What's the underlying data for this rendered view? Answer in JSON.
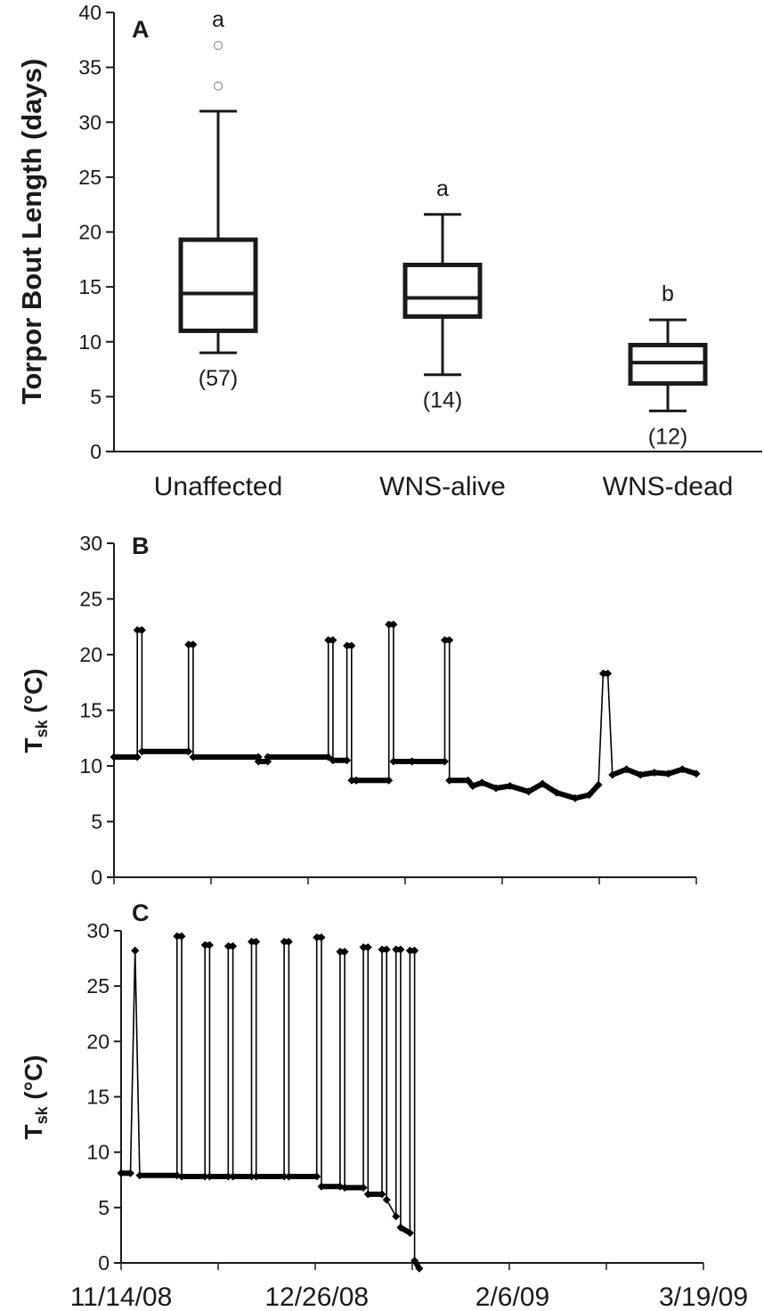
{
  "chart_data": [
    {
      "panel": "A",
      "type": "box",
      "ylabel": "Torpor Bout Length (days)",
      "ylim": [
        0,
        40
      ],
      "yticks": [
        0,
        5,
        10,
        15,
        20,
        25,
        30,
        35,
        40
      ],
      "categories": [
        "Unaffected",
        "WNS-alive",
        "WNS-dead"
      ],
      "boxes": [
        {
          "category": "Unaffected",
          "whisker_low": 9,
          "q1": 11,
          "median": 14.4,
          "q3": 19.3,
          "whisker_high": 31,
          "outliers": [
            33.3,
            37
          ],
          "sig_letter": "a",
          "n_label": "(57)"
        },
        {
          "category": "WNS-alive",
          "whisker_low": 7,
          "q1": 12.3,
          "median": 14,
          "q3": 17,
          "whisker_high": 21.6,
          "outliers": [],
          "sig_letter": "a",
          "n_label": "(14)"
        },
        {
          "category": "WNS-dead",
          "whisker_low": 3.7,
          "q1": 6.2,
          "median": 8.1,
          "q3": 9.7,
          "whisker_high": 12,
          "outliers": [],
          "sig_letter": "b",
          "n_label": "(12)"
        }
      ]
    },
    {
      "panel": "B",
      "type": "line",
      "ylabel": "T",
      "ylabel_sub": "sk",
      "ylabel_unit": " (°C)",
      "ylim": [
        0,
        30
      ],
      "yticks": [
        0,
        5,
        10,
        15,
        20,
        25,
        30
      ],
      "xlim": [
        "11/14/08",
        "3/19/09"
      ],
      "x": [
        "11/14/08",
        "11/19/08",
        "11/19/08",
        "11/20/08",
        "11/20/08",
        "11/30/08",
        "11/30/08",
        "12/1/08",
        "12/1/08",
        "12/15/08",
        "12/15/08",
        "12/17/08",
        "12/17/08",
        "12/30/08",
        "12/30/08",
        "12/31/08",
        "12/31/08",
        "1/3/09",
        "1/3/09",
        "1/4/09",
        "1/4/09",
        "1/5/09",
        "1/5/09",
        "1/12/09",
        "1/12/09",
        "1/13/09",
        "1/13/09",
        "1/17/09",
        "1/17/09",
        "1/24/09",
        "1/24/09",
        "1/25/09",
        "1/25/09",
        "1/29/09",
        "1/30/09",
        "2/1/09",
        "2/4/09",
        "2/7/09",
        "2/11/09",
        "2/14/09",
        "2/17/09",
        "2/21/09",
        "2/24/09",
        "2/26/09",
        "2/27/09",
        "2/28/09",
        "3/1/09",
        "3/4/09",
        "3/7/09",
        "3/10/09",
        "3/13/09",
        "3/16/09",
        "3/19/09"
      ],
      "y": [
        10.8,
        10.8,
        22.2,
        22.2,
        11.3,
        11.3,
        20.9,
        20.9,
        10.8,
        10.8,
        10.4,
        10.4,
        10.8,
        10.8,
        21.3,
        21.3,
        10.5,
        10.5,
        20.8,
        20.8,
        8.7,
        8.7,
        8.7,
        8.7,
        22.7,
        22.7,
        10.4,
        10.4,
        10.4,
        10.4,
        21.3,
        21.3,
        8.7,
        8.7,
        8.2,
        8.5,
        8.0,
        8.2,
        7.7,
        8.4,
        7.6,
        7.1,
        7.4,
        8.3,
        18.3,
        18.3,
        9.2,
        9.7,
        9.2,
        9.4,
        9.3,
        9.7,
        9.3
      ]
    },
    {
      "panel": "C",
      "type": "line",
      "ylabel": "T",
      "ylabel_sub": "sk",
      "ylabel_unit": " (°C)",
      "ylim": [
        0,
        30
      ],
      "yticks": [
        0,
        5,
        10,
        15,
        20,
        25,
        30
      ],
      "xlim": [
        "11/14/08",
        "3/19/09"
      ],
      "xticks": [
        "11/14/08",
        "12/26/08",
        "2/6/09",
        "3/19/09"
      ],
      "x": [
        "11/14/08",
        "11/16/08",
        "11/17/08",
        "11/17/08",
        "11/18/08",
        "11/26/08",
        "11/26/08",
        "11/27/08",
        "11/27/08",
        "12/2/08",
        "12/2/08",
        "12/3/08",
        "12/3/08",
        "12/7/08",
        "12/7/08",
        "12/8/08",
        "12/8/08",
        "12/12/08",
        "12/12/08",
        "12/13/08",
        "12/13/08",
        "12/19/08",
        "12/19/08",
        "12/20/08",
        "12/20/08",
        "12/26/08",
        "12/26/08",
        "12/27/08",
        "12/27/08",
        "12/31/08",
        "12/31/08",
        "1/1/09",
        "1/1/09",
        "1/5/09",
        "1/5/09",
        "1/6/09",
        "1/6/09",
        "1/9/09",
        "1/9/09",
        "1/10/09",
        "1/10/09",
        "1/12/09",
        "1/12/09",
        "1/13/09",
        "1/13/09",
        "1/15/09",
        "1/15/09",
        "1/16/09",
        "1/16/09",
        "1/17/09"
      ],
      "y": [
        8.1,
        8.1,
        28.2,
        28.2,
        7.9,
        7.9,
        29.5,
        29.5,
        7.8,
        7.8,
        28.7,
        28.7,
        7.8,
        7.8,
        28.6,
        28.6,
        7.8,
        7.8,
        29.0,
        29.0,
        7.8,
        7.8,
        29.0,
        29.0,
        7.8,
        7.8,
        29.4,
        29.4,
        6.9,
        6.9,
        28.1,
        28.1,
        6.8,
        6.8,
        28.5,
        28.5,
        6.2,
        6.2,
        28.3,
        28.3,
        5.7,
        4.2,
        28.3,
        28.3,
        3.2,
        2.7,
        28.2,
        28.2,
        0.2,
        -0.5
      ]
    }
  ],
  "panel_letters": {
    "a": "A",
    "b": "B",
    "c": "C"
  },
  "ylabels": {
    "a": "Torpor Bout Length (days)",
    "b_main": "T",
    "b_sub": "sk",
    "b_unit": " (°C)",
    "c_main": "T",
    "c_sub": "sk",
    "c_unit": " (°C)"
  }
}
